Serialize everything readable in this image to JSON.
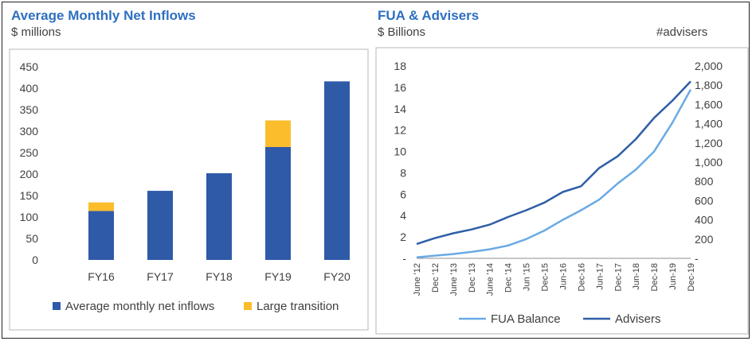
{
  "colors": {
    "title": "#2e6fc0",
    "bar_base": "#2e5aa8",
    "bar_transition": "#fbbd2c",
    "fua_line": "#6aaae4",
    "advisers_line": "#2f5ea6",
    "panel_border": "#b7b7b7"
  },
  "left_chart": {
    "title": "Average Monthly Net Inflows",
    "subtitle": "$ millions"
  },
  "right_chart": {
    "title": "FUA & Advisers",
    "subtitle_left": "$ Billions",
    "subtitle_right": "#advisers"
  },
  "chart_data": [
    {
      "type": "bar",
      "stacked": true,
      "title": "Average Monthly Net Inflows",
      "subtitle": "$ millions",
      "categories": [
        "FY16",
        "FY17",
        "FY18",
        "FY19",
        "FY20"
      ],
      "series": [
        {
          "name": "Average monthly net inflows",
          "color": "#2e5aa8",
          "values": [
            114,
            161,
            202,
            263,
            416
          ]
        },
        {
          "name": "Large transition",
          "color": "#fbbd2c",
          "values": [
            20,
            0,
            0,
            62,
            0
          ]
        }
      ],
      "ylim": [
        0,
        450
      ],
      "yticks": [
        "0",
        "50",
        "100",
        "150",
        "200",
        "250",
        "300",
        "350",
        "400",
        "450"
      ],
      "grid": false,
      "legend": "bottom"
    },
    {
      "type": "line",
      "title": "FUA & Advisers",
      "ylabel_left": "$ Billions",
      "ylabel_right": "#advisers",
      "x": [
        "June '12",
        "Dec '12",
        "June '13",
        "Dec '13",
        "June '14",
        "Dec '14",
        "Jun '15",
        "Dec-15",
        "Jun-16",
        "Dec-16",
        "Jun-17",
        "Dec-17",
        "Jun-18",
        "Dec-18",
        "Jun-19",
        "Dec-19"
      ],
      "ylim_left": [
        0,
        18
      ],
      "ylim_right": [
        0,
        2000
      ],
      "yticks_left": [
        "-",
        "2",
        "4",
        "6",
        "8",
        "10",
        "12",
        "14",
        "16",
        "18"
      ],
      "yticks_right": [
        "-",
        "200",
        "400",
        "600",
        "800",
        "1,000",
        "1,200",
        "1,400",
        "1,600",
        "1,800",
        "2,000"
      ],
      "series": [
        {
          "name": "FUA Balance",
          "axis": "left",
          "color": "#6aaae4",
          "values": [
            0.1,
            0.25,
            0.4,
            0.6,
            0.85,
            1.2,
            1.8,
            2.6,
            3.6,
            4.5,
            5.5,
            7.0,
            8.3,
            10.0,
            12.7,
            15.8
          ]
        },
        {
          "name": "Advisers",
          "axis": "right",
          "color": "#2f5ea6",
          "values": [
            150,
            210,
            260,
            300,
            350,
            430,
            500,
            580,
            690,
            750,
            940,
            1060,
            1240,
            1460,
            1640,
            1840
          ]
        }
      ],
      "grid": false,
      "legend": "bottom"
    }
  ]
}
